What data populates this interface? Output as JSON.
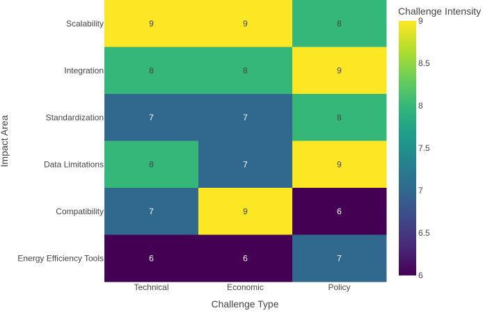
{
  "chart_data": {
    "type": "heatmap",
    "title": "",
    "xlabel": "Challenge Type",
    "ylabel": "Impact Area",
    "x_categories": [
      "Technical",
      "Economic",
      "Policy"
    ],
    "y_categories": [
      "Scalability",
      "Integration",
      "Standardization",
      "Data Limitations",
      "Compatibility",
      "Energy Efficiency Tools"
    ],
    "values": [
      [
        9,
        9,
        8
      ],
      [
        8,
        8,
        9
      ],
      [
        7,
        7,
        8
      ],
      [
        8,
        7,
        9
      ],
      [
        7,
        9,
        6
      ],
      [
        6,
        6,
        7
      ]
    ],
    "colorscale": "Viridis",
    "zrange": [
      6,
      9
    ],
    "show_cell_labels": true,
    "colorbar": {
      "title": "Challenge Intensity",
      "tick_values": [
        6,
        6.5,
        7,
        7.5,
        8,
        8.5,
        9
      ],
      "tick_labels": [
        "6",
        "6.5",
        "7",
        "7.5",
        "8",
        "8.5",
        "9"
      ]
    }
  }
}
